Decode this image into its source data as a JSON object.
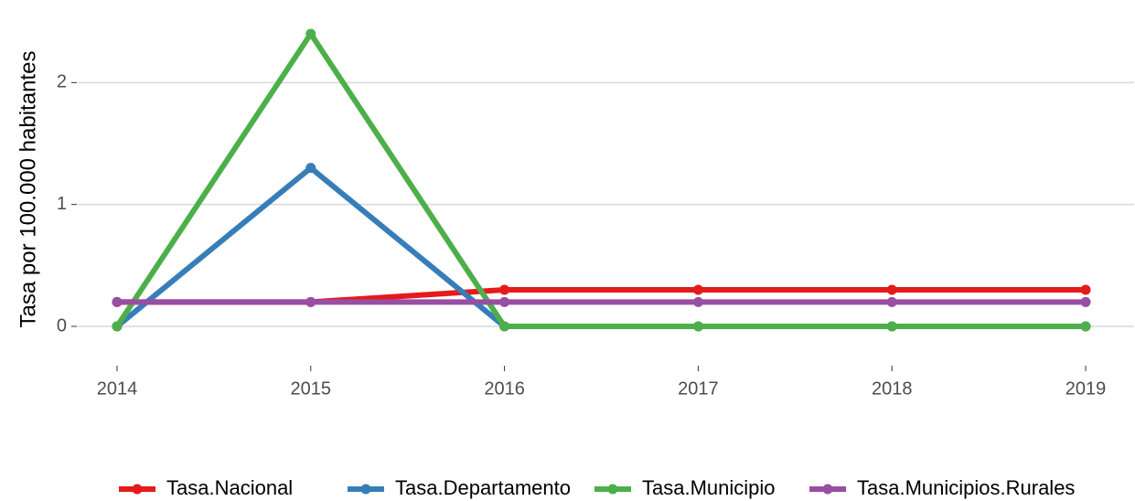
{
  "chart_data": {
    "type": "line",
    "ylabel": "Tasa por 100.000 habitantes",
    "x": [
      2014,
      2015,
      2016,
      2017,
      2018,
      2019
    ],
    "series": [
      {
        "name": "Tasa.Nacional",
        "color": "#e41a1c",
        "values": [
          0.2,
          0.2,
          0.3,
          0.3,
          0.3,
          0.3
        ]
      },
      {
        "name": "Tasa.Departamento",
        "color": "#377eb8",
        "values": [
          0,
          1.3,
          0,
          0,
          0,
          0
        ]
      },
      {
        "name": "Tasa.Municipio",
        "color": "#4daf4a",
        "values": [
          0,
          2.4,
          0,
          0,
          0,
          0
        ]
      },
      {
        "name": "Tasa.Municipios.Rurales",
        "color": "#984ea3",
        "values": [
          0.2,
          0.2,
          0.2,
          0.2,
          0.2,
          0.2
        ]
      }
    ],
    "xlim": [
      2013.8,
      2019.25
    ],
    "xticks": [
      2014,
      2015,
      2016,
      2017,
      2018,
      2019
    ],
    "ylim": [
      -0.3,
      2.55
    ],
    "yticks": [
      0,
      1,
      2
    ],
    "grid": true,
    "legend": "bottom"
  }
}
